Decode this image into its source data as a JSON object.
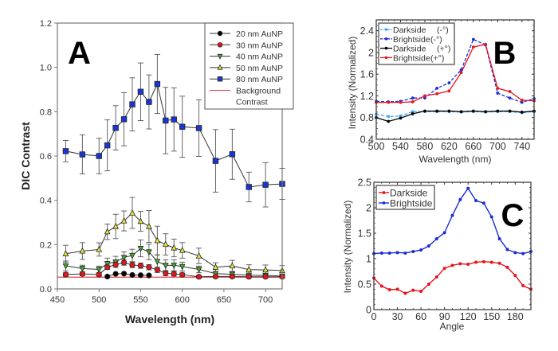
{
  "chart_data": [
    {
      "panel": "A",
      "type": "line",
      "title": "",
      "panel_label": "A",
      "xlabel": "Wavelength (nm)",
      "ylabel": "DIC Contrast",
      "xlim": [
        450,
        720
      ],
      "ylim": [
        0.0,
        1.2
      ],
      "xticks": [
        450,
        500,
        550,
        600,
        650,
        700
      ],
      "xtick_labels": [
        "450",
        "500",
        "550",
        "600",
        "650",
        "700"
      ],
      "yticks": [
        0.0,
        0.2,
        0.4,
        0.6,
        0.8,
        1.0,
        1.2
      ],
      "ytick_labels": [
        "0.0",
        "0.2",
        "0.4",
        "0.6",
        "0.8",
        "1.0",
        "1.2"
      ],
      "grid": false,
      "legend_position": "top-right",
      "background_contrast": {
        "name": "Background Contrast",
        "value": 0.053,
        "color": "#e8454a"
      },
      "series": [
        {
          "name": "20 nm AuNP",
          "marker": "circle",
          "color": "#000000",
          "x": [
            510,
            520,
            530,
            540,
            550,
            560
          ],
          "y": [
            0.056,
            0.068,
            0.069,
            0.063,
            0.062,
            0.061
          ],
          "err": [
            0,
            0,
            0,
            0,
            0,
            0
          ]
        },
        {
          "name": "30 nm AuNP",
          "marker": "circle",
          "color": "#e8141c",
          "x": [
            460,
            480,
            500,
            510,
            520,
            530,
            540,
            550,
            560,
            570,
            580,
            590,
            600,
            620,
            640,
            660,
            680,
            700,
            720
          ],
          "y": [
            0.065,
            0.068,
            0.065,
            0.098,
            0.11,
            0.119,
            0.108,
            0.105,
            0.098,
            0.086,
            0.071,
            0.068,
            0.064,
            0.055,
            0.056,
            0.056,
            0.055,
            0.055,
            0.055
          ],
          "err": [
            0.008,
            0.008,
            0.008,
            0.01,
            0.012,
            0.012,
            0.012,
            0.012,
            0.012,
            0.012,
            0.012,
            0.01,
            0.008,
            0.006,
            0.006,
            0.006,
            0.006,
            0.006,
            0.006
          ]
        },
        {
          "name": "40 nm AuNP",
          "marker": "triangle-down",
          "color": "#3fae2a",
          "x": [
            460,
            480,
            500,
            510,
            520,
            530,
            540,
            550,
            560,
            570,
            580,
            590,
            600,
            620,
            640,
            660,
            680,
            700,
            720
          ],
          "y": [
            0.104,
            0.092,
            0.088,
            0.114,
            0.122,
            0.142,
            0.151,
            0.183,
            0.167,
            0.124,
            0.106,
            0.107,
            0.101,
            0.088,
            0.069,
            0.066,
            0.062,
            0.061,
            0.058
          ],
          "err": [
            0.022,
            0.015,
            0.015,
            0.025,
            0.025,
            0.025,
            0.028,
            0.038,
            0.035,
            0.03,
            0.025,
            0.025,
            0.02,
            0.015,
            0.01,
            0.01,
            0.008,
            0.008,
            0.008
          ]
        },
        {
          "name": "50 nm AuNP",
          "marker": "triangle-up",
          "color": "#e8e83a",
          "x": [
            460,
            480,
            500,
            510,
            520,
            530,
            540,
            550,
            560,
            570,
            580,
            590,
            600,
            620,
            640,
            660,
            680,
            700,
            720
          ],
          "y": [
            0.159,
            0.171,
            0.178,
            0.258,
            0.282,
            0.307,
            0.343,
            0.305,
            0.282,
            0.218,
            0.201,
            0.185,
            0.174,
            0.149,
            0.098,
            0.104,
            0.087,
            0.086,
            0.083
          ],
          "err": [
            0.038,
            0.038,
            0.03,
            0.035,
            0.055,
            0.045,
            0.07,
            0.045,
            0.072,
            0.065,
            0.048,
            0.04,
            0.035,
            0.035,
            0.02,
            0.025,
            0.022,
            0.022,
            0.022
          ]
        },
        {
          "name": "80 nm AuNP",
          "marker": "square",
          "color": "#1a35d6",
          "x": [
            460,
            480,
            500,
            510,
            520,
            530,
            540,
            550,
            560,
            570,
            580,
            590,
            600,
            620,
            640,
            660,
            680,
            700,
            720
          ],
          "y": [
            0.622,
            0.607,
            0.6,
            0.648,
            0.727,
            0.766,
            0.833,
            0.89,
            0.844,
            0.925,
            0.76,
            0.765,
            0.732,
            0.726,
            0.578,
            0.608,
            0.46,
            0.47,
            0.474
          ],
          "err": [
            0.048,
            0.088,
            0.08,
            0.115,
            0.1,
            0.12,
            0.12,
            0.13,
            0.122,
            0.133,
            0.15,
            0.143,
            0.138,
            0.128,
            0.141,
            0.113,
            0.067,
            0.1,
            0.07
          ]
        }
      ]
    },
    {
      "panel": "B",
      "type": "line",
      "panel_label": "B",
      "xlabel": "Wavelength (nm)",
      "ylabel": "Intensity (Normalized)",
      "xlim": [
        500,
        760
      ],
      "ylim": [
        0.4,
        2.6
      ],
      "xticks": [
        500,
        540,
        580,
        620,
        660,
        700,
        740
      ],
      "xtick_labels": [
        "500",
        "540",
        "580",
        "620",
        "660",
        "700",
        "740"
      ],
      "yticks": [
        0.4,
        0.8,
        1.2,
        1.6,
        2.0,
        2.4
      ],
      "ytick_labels": [
        "0.4",
        "0.8",
        "1.2",
        "1.6",
        "2",
        "2.4"
      ],
      "grid": false,
      "legend_position": "top-left",
      "series": [
        {
          "name": "Darkside",
          "suffix": "(-°)",
          "color": "#3fa9f5",
          "dashed": true,
          "x": [
            500,
            520,
            540,
            560,
            580,
            600,
            620,
            640,
            660,
            680,
            700,
            720,
            740,
            760
          ],
          "y": [
            0.86,
            0.82,
            0.83,
            0.91,
            0.91,
            0.91,
            0.91,
            0.9,
            0.91,
            0.9,
            0.91,
            0.91,
            0.89,
            0.91
          ]
        },
        {
          "name": "Brightside",
          "suffix": "(-°)",
          "color": "#1a2ed6",
          "dashed": true,
          "x": [
            500,
            520,
            540,
            560,
            580,
            600,
            620,
            640,
            660,
            680,
            700,
            720,
            740,
            760
          ],
          "y": [
            1.1,
            1.09,
            1.1,
            1.16,
            1.16,
            1.34,
            1.44,
            1.68,
            2.24,
            2.14,
            1.25,
            1.16,
            1.08,
            1.15
          ]
        },
        {
          "name": "Darkside",
          "suffix": "(+°)",
          "color": "#000000",
          "dashed": false,
          "x": [
            500,
            520,
            540,
            560,
            580,
            600,
            620,
            640,
            660,
            680,
            700,
            720,
            740,
            760
          ],
          "y": [
            0.8,
            0.73,
            0.79,
            0.87,
            0.92,
            0.92,
            0.92,
            0.91,
            0.92,
            0.91,
            0.92,
            0.92,
            0.9,
            0.92
          ]
        },
        {
          "name": "Brightside",
          "suffix": "(+°)",
          "color": "#e8141c",
          "dashed": false,
          "x": [
            500,
            520,
            540,
            560,
            580,
            600,
            620,
            640,
            660,
            680,
            700,
            720,
            740,
            760
          ],
          "y": [
            1.08,
            1.08,
            1.08,
            1.09,
            1.2,
            1.24,
            1.29,
            1.63,
            2.1,
            2.15,
            1.34,
            1.28,
            1.12,
            1.11
          ]
        }
      ]
    },
    {
      "panel": "C",
      "type": "line",
      "panel_label": "C",
      "xlabel": "Angle",
      "ylabel": "Intensity (Normalized)",
      "xlim": [
        0,
        200
      ],
      "ylim": [
        0,
        2.5
      ],
      "xticks": [
        0,
        30,
        60,
        90,
        120,
        150,
        180
      ],
      "xtick_labels": [
        "0",
        "30",
        "60",
        "90",
        "120",
        "150",
        "180"
      ],
      "yticks": [
        0,
        0.5,
        1,
        1.5,
        2,
        2.5
      ],
      "ytick_labels": [
        "0",
        "0.5",
        "1",
        "1.5",
        "2",
        "2.5"
      ],
      "grid": false,
      "legend_position": "top-left",
      "series": [
        {
          "name": "Darkside",
          "color": "#e8141c",
          "x": [
            0,
            10,
            20,
            30,
            40,
            50,
            60,
            70,
            80,
            90,
            100,
            110,
            120,
            130,
            140,
            150,
            160,
            170,
            180,
            190,
            200
          ],
          "y": [
            0.62,
            0.46,
            0.39,
            0.4,
            0.32,
            0.38,
            0.36,
            0.5,
            0.64,
            0.81,
            0.87,
            0.9,
            0.89,
            0.93,
            0.94,
            0.93,
            0.91,
            0.83,
            0.67,
            0.47,
            0.4
          ]
        },
        {
          "name": "Brightside",
          "color": "#1a2ed6",
          "x": [
            0,
            10,
            20,
            30,
            40,
            50,
            60,
            70,
            80,
            90,
            100,
            110,
            120,
            130,
            140,
            150,
            160,
            170,
            180,
            190,
            200
          ],
          "y": [
            1.1,
            1.11,
            1.11,
            1.12,
            1.11,
            1.14,
            1.17,
            1.25,
            1.39,
            1.51,
            1.85,
            2.16,
            2.38,
            2.14,
            2.09,
            1.82,
            1.39,
            1.18,
            1.12,
            1.1,
            1.14
          ]
        }
      ]
    }
  ]
}
